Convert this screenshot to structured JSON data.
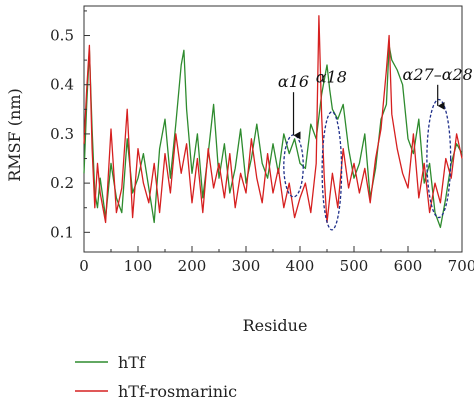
{
  "chart_data": {
    "type": "line",
    "title": "",
    "xlabel": "Residue",
    "ylabel": "RMSF (nm)",
    "xlim": [
      0,
      700
    ],
    "ylim": [
      0.06,
      0.56
    ],
    "xticks": [
      0,
      100,
      200,
      300,
      400,
      500,
      600,
      700
    ],
    "yticks": [
      0.1,
      0.2,
      0.3,
      0.4,
      0.5
    ],
    "xtick_labels": [
      "0",
      "100",
      "200",
      "300",
      "400",
      "500",
      "600",
      "700"
    ],
    "ytick_labels": [
      "0.1",
      "0.2",
      "0.3",
      "0.4",
      "0.5"
    ],
    "legend_position": "bottom-left",
    "grid": false,
    "series": [
      {
        "name": "hTf",
        "color": "#2e8b2e",
        "x": [
          0,
          5,
          10,
          15,
          20,
          25,
          30,
          40,
          50,
          60,
          70,
          80,
          90,
          100,
          110,
          120,
          130,
          140,
          150,
          160,
          170,
          180,
          185,
          190,
          200,
          210,
          220,
          230,
          240,
          250,
          260,
          270,
          280,
          290,
          300,
          310,
          320,
          330,
          340,
          350,
          360,
          370,
          380,
          390,
          400,
          410,
          420,
          430,
          440,
          450,
          455,
          460,
          470,
          480,
          490,
          500,
          510,
          520,
          530,
          540,
          550,
          560,
          565,
          570,
          580,
          590,
          600,
          610,
          620,
          630,
          640,
          650,
          660,
          670,
          680,
          690,
          700
        ],
        "values": [
          0.22,
          0.36,
          0.47,
          0.31,
          0.18,
          0.15,
          0.21,
          0.13,
          0.24,
          0.17,
          0.14,
          0.29,
          0.18,
          0.21,
          0.26,
          0.19,
          0.12,
          0.27,
          0.33,
          0.21,
          0.32,
          0.44,
          0.47,
          0.35,
          0.22,
          0.3,
          0.17,
          0.26,
          0.36,
          0.21,
          0.28,
          0.18,
          0.23,
          0.31,
          0.2,
          0.25,
          0.32,
          0.24,
          0.21,
          0.28,
          0.22,
          0.3,
          0.26,
          0.29,
          0.24,
          0.23,
          0.32,
          0.29,
          0.38,
          0.44,
          0.39,
          0.35,
          0.33,
          0.36,
          0.27,
          0.21,
          0.24,
          0.3,
          0.17,
          0.23,
          0.33,
          0.36,
          0.48,
          0.45,
          0.43,
          0.4,
          0.29,
          0.26,
          0.33,
          0.2,
          0.24,
          0.14,
          0.11,
          0.17,
          0.24,
          0.28,
          0.26
        ]
      },
      {
        "name": "hTf-rosmarinic",
        "color": "#d62020",
        "x": [
          0,
          5,
          10,
          15,
          20,
          25,
          30,
          40,
          50,
          60,
          70,
          80,
          90,
          100,
          110,
          120,
          130,
          140,
          150,
          160,
          170,
          180,
          190,
          200,
          210,
          220,
          230,
          240,
          250,
          260,
          270,
          280,
          290,
          300,
          310,
          320,
          330,
          340,
          350,
          360,
          370,
          380,
          390,
          400,
          410,
          420,
          430,
          435,
          440,
          445,
          450,
          460,
          470,
          480,
          490,
          500,
          510,
          520,
          530,
          540,
          550,
          560,
          565,
          570,
          580,
          590,
          600,
          610,
          620,
          630,
          640,
          650,
          660,
          670,
          680,
          690,
          700
        ],
        "values": [
          0.28,
          0.39,
          0.48,
          0.27,
          0.15,
          0.24,
          0.18,
          0.12,
          0.31,
          0.14,
          0.19,
          0.35,
          0.13,
          0.27,
          0.2,
          0.16,
          0.24,
          0.14,
          0.26,
          0.18,
          0.3,
          0.22,
          0.28,
          0.16,
          0.25,
          0.14,
          0.27,
          0.19,
          0.24,
          0.17,
          0.26,
          0.15,
          0.22,
          0.18,
          0.29,
          0.21,
          0.16,
          0.26,
          0.18,
          0.23,
          0.15,
          0.2,
          0.13,
          0.17,
          0.2,
          0.14,
          0.24,
          0.54,
          0.34,
          0.21,
          0.12,
          0.22,
          0.15,
          0.27,
          0.19,
          0.24,
          0.18,
          0.23,
          0.16,
          0.25,
          0.31,
          0.43,
          0.5,
          0.34,
          0.27,
          0.22,
          0.19,
          0.3,
          0.17,
          0.24,
          0.14,
          0.2,
          0.16,
          0.25,
          0.21,
          0.3,
          0.25
        ]
      }
    ],
    "annotations": [
      {
        "label": "α16",
        "x": 388,
        "label_y": 0.395,
        "arrow_to_y": 0.295,
        "ellipse": {
          "cx": 388,
          "cy": 0.235,
          "rx": 18,
          "ry": 0.063
        }
      },
      {
        "label": "α18",
        "x": 458,
        "label_y": 0.405,
        "arrow_to_y": 0.0,
        "ellipse": {
          "cx": 459,
          "cy": 0.225,
          "rx": 18,
          "ry": 0.12
        }
      },
      {
        "label": "α27–α28",
        "x": 655,
        "label_y": 0.41,
        "arrow_to_y": 0.355,
        "ellipse": {
          "cx": 657,
          "cy": 0.25,
          "rx": 22,
          "ry": 0.12
        }
      }
    ]
  }
}
